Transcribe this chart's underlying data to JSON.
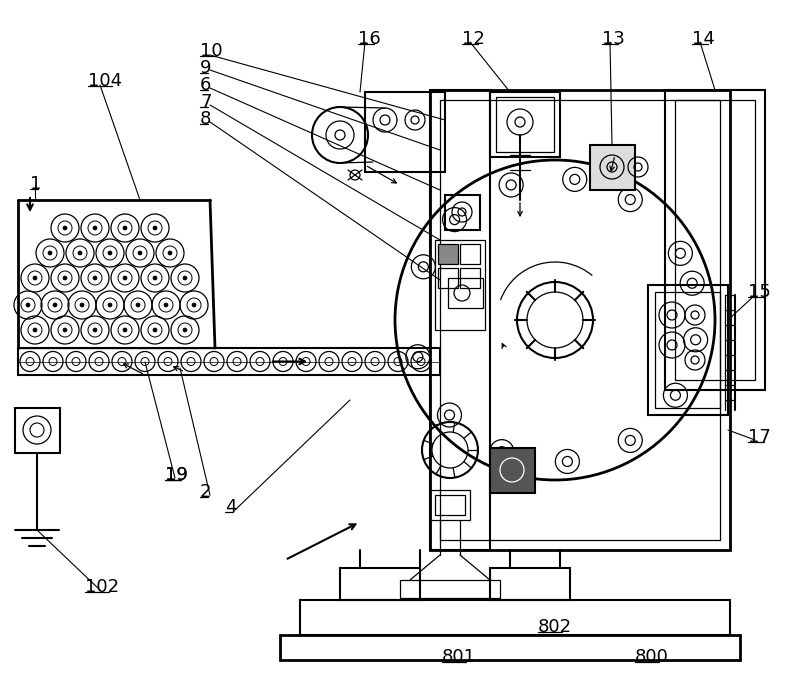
{
  "bg_color": "#ffffff",
  "line_color": "#000000",
  "fig_width": 8.0,
  "fig_height": 6.96,
  "dpi": 100
}
